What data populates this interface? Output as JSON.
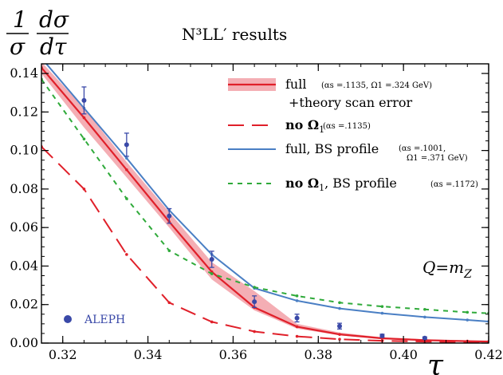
{
  "chart_data": {
    "type": "line",
    "title": "N³LL′ results",
    "ylabel": {
      "num": "1",
      "den": "σ",
      "dnum": "dσ",
      "dden": "dτ"
    },
    "xlabel": "τ",
    "xlim": [
      0.315,
      0.42
    ],
    "ylim": [
      0.0,
      0.145
    ],
    "x_ticks": [
      0.32,
      0.34,
      0.36,
      0.38,
      0.4,
      0.42
    ],
    "x_tick_labels": [
      "0.32",
      "0.34",
      "0.36",
      "0.38",
      "0.40",
      "0.42"
    ],
    "y_ticks": [
      0.0,
      0.02,
      0.04,
      0.06,
      0.08,
      0.1,
      0.12,
      0.14
    ],
    "y_tick_labels": [
      "0.00",
      "0.02",
      "0.04",
      "0.06",
      "0.08",
      "0.10",
      "0.12",
      "0.14"
    ],
    "annotation": "Q=m",
    "annotation_sub": "Z",
    "legend_placement": "top-right",
    "legend": [
      {
        "key": "full",
        "label": "full",
        "detail": "(αs =.1135, Ω1 =.324 GeV)",
        "extra": "+theory scan error"
      },
      {
        "key": "noomega",
        "label": "no Ω",
        "label_sub": "1",
        "detail": "(αs =.1135)"
      },
      {
        "key": "bs",
        "label": "full, BS profile",
        "detail": "(αs =.1001,",
        "detail2": "Ω1 =.371 GeV)"
      },
      {
        "key": "bsno",
        "label": "no Ω",
        "label_sub": "1",
        "label_after": ", BS profile",
        "detail": "(αs =.1172)"
      }
    ],
    "series": [
      {
        "name": "full",
        "color": "#e0202a",
        "band_color": "#f4aeb4",
        "x": [
          0.315,
          0.325,
          0.335,
          0.345,
          0.355,
          0.365,
          0.375,
          0.385,
          0.395,
          0.405,
          0.415,
          0.42
        ],
        "y": [
          0.143,
          0.117,
          0.09,
          0.063,
          0.037,
          0.0185,
          0.0085,
          0.0045,
          0.0025,
          0.0015,
          0.001,
          0.0008
        ],
        "band_low": [
          0.14,
          0.112,
          0.086,
          0.06,
          0.033,
          0.017,
          0.0075,
          0.004,
          0.002,
          0.0012,
          0.0008,
          0.0006
        ],
        "band_high": [
          0.146,
          0.122,
          0.094,
          0.068,
          0.042,
          0.027,
          0.01,
          0.0055,
          0.003,
          0.002,
          0.0013,
          0.001
        ]
      },
      {
        "name": "no Ω1",
        "color": "#e0202a",
        "dash": "dashed-long",
        "x": [
          0.315,
          0.325,
          0.335,
          0.345,
          0.355,
          0.365,
          0.375,
          0.385,
          0.395,
          0.405,
          0.415,
          0.42
        ],
        "y": [
          0.102,
          0.08,
          0.046,
          0.021,
          0.011,
          0.006,
          0.0035,
          0.002,
          0.0012,
          0.0008,
          0.0005,
          0.0004
        ]
      },
      {
        "name": "full, BS profile",
        "color": "#4a7fc4",
        "x": [
          0.315,
          0.325,
          0.335,
          0.345,
          0.355,
          0.365,
          0.375,
          0.385,
          0.395,
          0.405,
          0.415,
          0.42
        ],
        "y": [
          0.148,
          0.122,
          0.096,
          0.069,
          0.046,
          0.0285,
          0.022,
          0.018,
          0.0155,
          0.0135,
          0.012,
          0.0112
        ]
      },
      {
        "name": "no Ω1, BS profile",
        "color": "#2faa3a",
        "dash": "dashed-short",
        "x": [
          0.315,
          0.325,
          0.335,
          0.345,
          0.355,
          0.365,
          0.375,
          0.385,
          0.395,
          0.405,
          0.415,
          0.42
        ],
        "y": [
          0.137,
          0.106,
          0.075,
          0.048,
          0.036,
          0.029,
          0.0245,
          0.021,
          0.019,
          0.0175,
          0.016,
          0.0155
        ]
      }
    ],
    "data_points": {
      "name": "ALEPH",
      "color": "#3a49a8",
      "x": [
        0.325,
        0.335,
        0.345,
        0.355,
        0.365,
        0.375,
        0.385,
        0.395,
        0.405
      ],
      "y": [
        0.126,
        0.103,
        0.066,
        0.0435,
        0.0215,
        0.013,
        0.0088,
        0.0038,
        0.0026
      ],
      "err": [
        0.007,
        0.006,
        0.0038,
        0.0042,
        0.003,
        0.002,
        0.0015,
        0.0008,
        0.0006
      ]
    }
  }
}
